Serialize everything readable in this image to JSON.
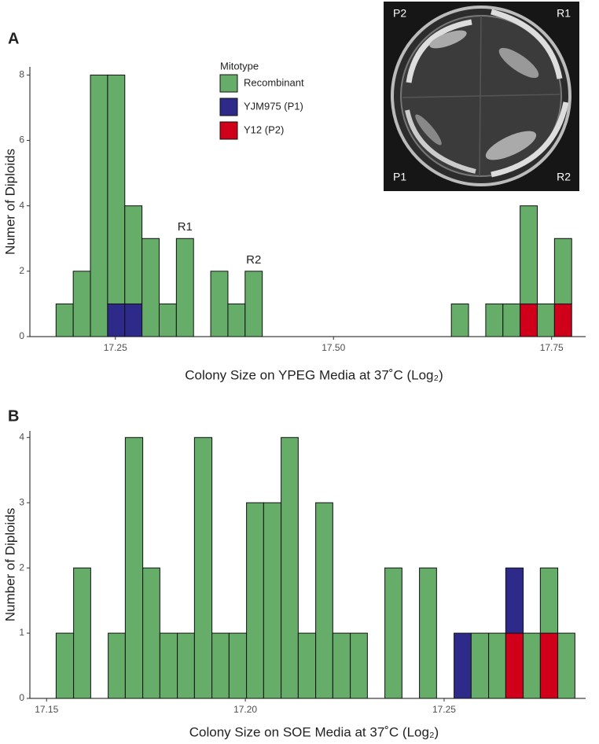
{
  "chart_data": [
    {
      "type": "histogram",
      "panel_label": "A",
      "ylabel": "Numer of Diploids",
      "xlabel": "Colony Size on YPEG Media at 37˚C (Log₂)",
      "legend_title": "Mitotype",
      "annotations": [
        "R1",
        "R2"
      ],
      "inset_labels": [
        "P2",
        "R1",
        "P1",
        "R2"
      ],
      "bins": [
        17.182,
        17.2017,
        17.2214,
        17.2411,
        17.2608,
        17.2805,
        17.3002,
        17.3199,
        17.3396,
        17.3593,
        17.379,
        17.3987,
        17.4184,
        17.4381,
        17.4578,
        17.4775,
        17.4972,
        17.5169,
        17.5366,
        17.5563,
        17.576,
        17.5957,
        17.6154,
        17.6351,
        17.6548,
        17.6745,
        17.6942,
        17.7139,
        17.7336,
        17.7533,
        17.773
      ],
      "series": [
        {
          "name": "Recombinant",
          "color": "#66ad6a",
          "values": [
            1,
            2,
            8,
            7,
            3,
            3,
            1,
            3,
            0,
            2,
            1,
            2,
            0,
            0,
            0,
            0,
            0,
            0,
            0,
            0,
            0,
            0,
            0,
            1,
            0,
            1,
            1,
            3,
            1,
            2
          ]
        },
        {
          "name": "YJM975 (P1)",
          "color": "#2e2a8a",
          "values": [
            0,
            0,
            0,
            1,
            1,
            0,
            0,
            0,
            0,
            0,
            0,
            0,
            0,
            0,
            0,
            0,
            0,
            0,
            0,
            0,
            0,
            0,
            0,
            0,
            0,
            0,
            0,
            0,
            0,
            0
          ]
        },
        {
          "name": "Y12 (P2)",
          "color": "#d0001b",
          "values": [
            0,
            0,
            0,
            0,
            0,
            0,
            0,
            0,
            0,
            0,
            0,
            0,
            0,
            0,
            0,
            0,
            0,
            0,
            0,
            0,
            0,
            0,
            0,
            0,
            0,
            0,
            0,
            1,
            0,
            1
          ]
        }
      ],
      "xlim": [
        17.152,
        17.789
      ],
      "xticks": [
        17.25,
        {
          "value": 17.5,
          "label": "17.50"
        },
        17.75
      ],
      "ylim": [
        0,
        8.25
      ],
      "yticks": [
        0,
        2,
        4,
        6,
        8
      ]
    },
    {
      "type": "histogram",
      "panel_label": "B",
      "ylabel": "Number of Diploids",
      "xlabel": "Colony Size on SOE Media at 37˚C (Log₂)",
      "bins": [
        17.1524,
        17.1568,
        17.1611,
        17.1655,
        17.1698,
        17.1742,
        17.1785,
        17.1829,
        17.1872,
        17.1916,
        17.1959,
        17.2003,
        17.2046,
        17.209,
        17.2133,
        17.2177,
        17.222,
        17.2264,
        17.2307,
        17.2351,
        17.2394,
        17.2438,
        17.2481,
        17.2525,
        17.2568,
        17.2612,
        17.2655,
        17.2699,
        17.2742,
        17.2786,
        17.2829
      ],
      "series": [
        {
          "name": "Recombinant",
          "color": "#66ad6a",
          "values": [
            1,
            2,
            0,
            1,
            4,
            2,
            1,
            1,
            4,
            1,
            1,
            3,
            3,
            4,
            1,
            3,
            1,
            1,
            0,
            2,
            0,
            2,
            0,
            0,
            1,
            1,
            0,
            1,
            1,
            1
          ]
        },
        {
          "name": "YJM975 (P1)",
          "color": "#2e2a8a",
          "values": [
            0,
            0,
            0,
            0,
            0,
            0,
            0,
            0,
            0,
            0,
            0,
            0,
            0,
            0,
            0,
            0,
            0,
            0,
            0,
            0,
            0,
            0,
            0,
            1,
            0,
            0,
            1,
            0,
            0,
            0
          ]
        },
        {
          "name": "Y12 (P2)",
          "color": "#d0001b",
          "values": [
            0,
            0,
            0,
            0,
            0,
            0,
            0,
            0,
            0,
            0,
            0,
            0,
            0,
            0,
            0,
            0,
            0,
            0,
            0,
            0,
            0,
            0,
            0,
            0,
            0,
            0,
            1,
            0,
            1,
            0
          ]
        }
      ],
      "xlim": [
        17.1458,
        17.2856
      ],
      "xticks": [
        17.15,
        {
          "value": 17.2,
          "label": "17.20"
        },
        17.25
      ],
      "ylim": [
        0,
        4.1
      ],
      "yticks": [
        0,
        1,
        2,
        3,
        4
      ]
    }
  ]
}
